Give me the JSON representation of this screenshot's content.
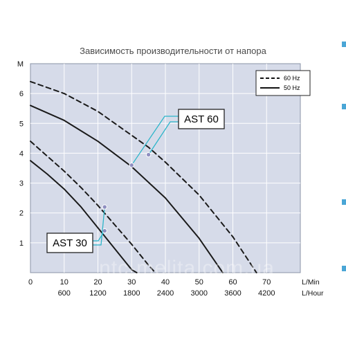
{
  "chart_data": {
    "type": "line",
    "title": "Зависимость производительности от напора",
    "ylabel": "M",
    "x_unit_primary": "L/Min",
    "x_unit_secondary": "L/Hour",
    "xlim": [
      0,
      80
    ],
    "ylim": [
      0,
      7
    ],
    "x_ticks": [
      0,
      10,
      20,
      30,
      40,
      50,
      60,
      70
    ],
    "x_tick_labels": [
      "0",
      "10",
      "20",
      "30",
      "40",
      "50",
      "60",
      "70"
    ],
    "x_ticks_secondary": [
      10,
      20,
      30,
      40,
      50,
      60,
      70
    ],
    "x_tick_labels_secondary": [
      "600",
      "1200",
      "1800",
      "2400",
      "3000",
      "3600",
      "4200"
    ],
    "y_ticks": [
      1,
      2,
      3,
      4,
      5,
      6
    ],
    "y_tick_labels": [
      "1",
      "2",
      "3",
      "4",
      "5",
      "6"
    ],
    "grid": true,
    "legend": {
      "placement": "top-right",
      "entries": [
        {
          "label": "60 Hz",
          "style": "dashed"
        },
        {
          "label": "50 Hz",
          "style": "solid"
        }
      ]
    },
    "series": [
      {
        "model": "AST 60",
        "freq": "60 Hz",
        "style": "dashed",
        "x": [
          0,
          10,
          20,
          30,
          35,
          40,
          50,
          60,
          67
        ],
        "y": [
          6.4,
          6.0,
          5.4,
          4.6,
          4.2,
          3.7,
          2.6,
          1.2,
          0
        ]
      },
      {
        "model": "AST 60",
        "freq": "50 Hz",
        "style": "solid",
        "x": [
          0,
          10,
          20,
          30,
          40,
          50,
          57
        ],
        "y": [
          5.6,
          5.1,
          4.4,
          3.55,
          2.5,
          1.15,
          0
        ]
      },
      {
        "model": "AST 30",
        "freq": "60 Hz",
        "style": "dashed",
        "x": [
          0,
          5,
          10,
          15,
          20,
          25,
          30,
          35,
          37
        ],
        "y": [
          4.4,
          3.9,
          3.4,
          2.85,
          2.25,
          1.6,
          0.95,
          0.25,
          0
        ]
      },
      {
        "model": "AST 30",
        "freq": "50 Hz",
        "style": "solid",
        "x": [
          0,
          5,
          10,
          15,
          20,
          25,
          30,
          31.5
        ],
        "y": [
          3.75,
          3.3,
          2.8,
          2.2,
          1.5,
          0.8,
          0.1,
          0
        ]
      }
    ],
    "annotations": [
      {
        "text": "AST 60",
        "points": [
          {
            "x": 30,
            "y": 3.6
          },
          {
            "x": 35,
            "y": 3.95
          }
        ]
      },
      {
        "text": "AST 30",
        "points": [
          {
            "x": 22,
            "y": 1.4
          },
          {
            "x": 22,
            "y": 2.2
          }
        ]
      }
    ]
  },
  "watermark": "ntc-melita.com.ua",
  "colors": {
    "plot_background": "#d6dbe9",
    "plot_border": "#8a93a6",
    "grid": "#ffffff",
    "curve": "#1a1a1a",
    "callout_line": "#2bb5c9",
    "marker": "#8f8fc0",
    "edge_accent": "#4aa6d6"
  }
}
